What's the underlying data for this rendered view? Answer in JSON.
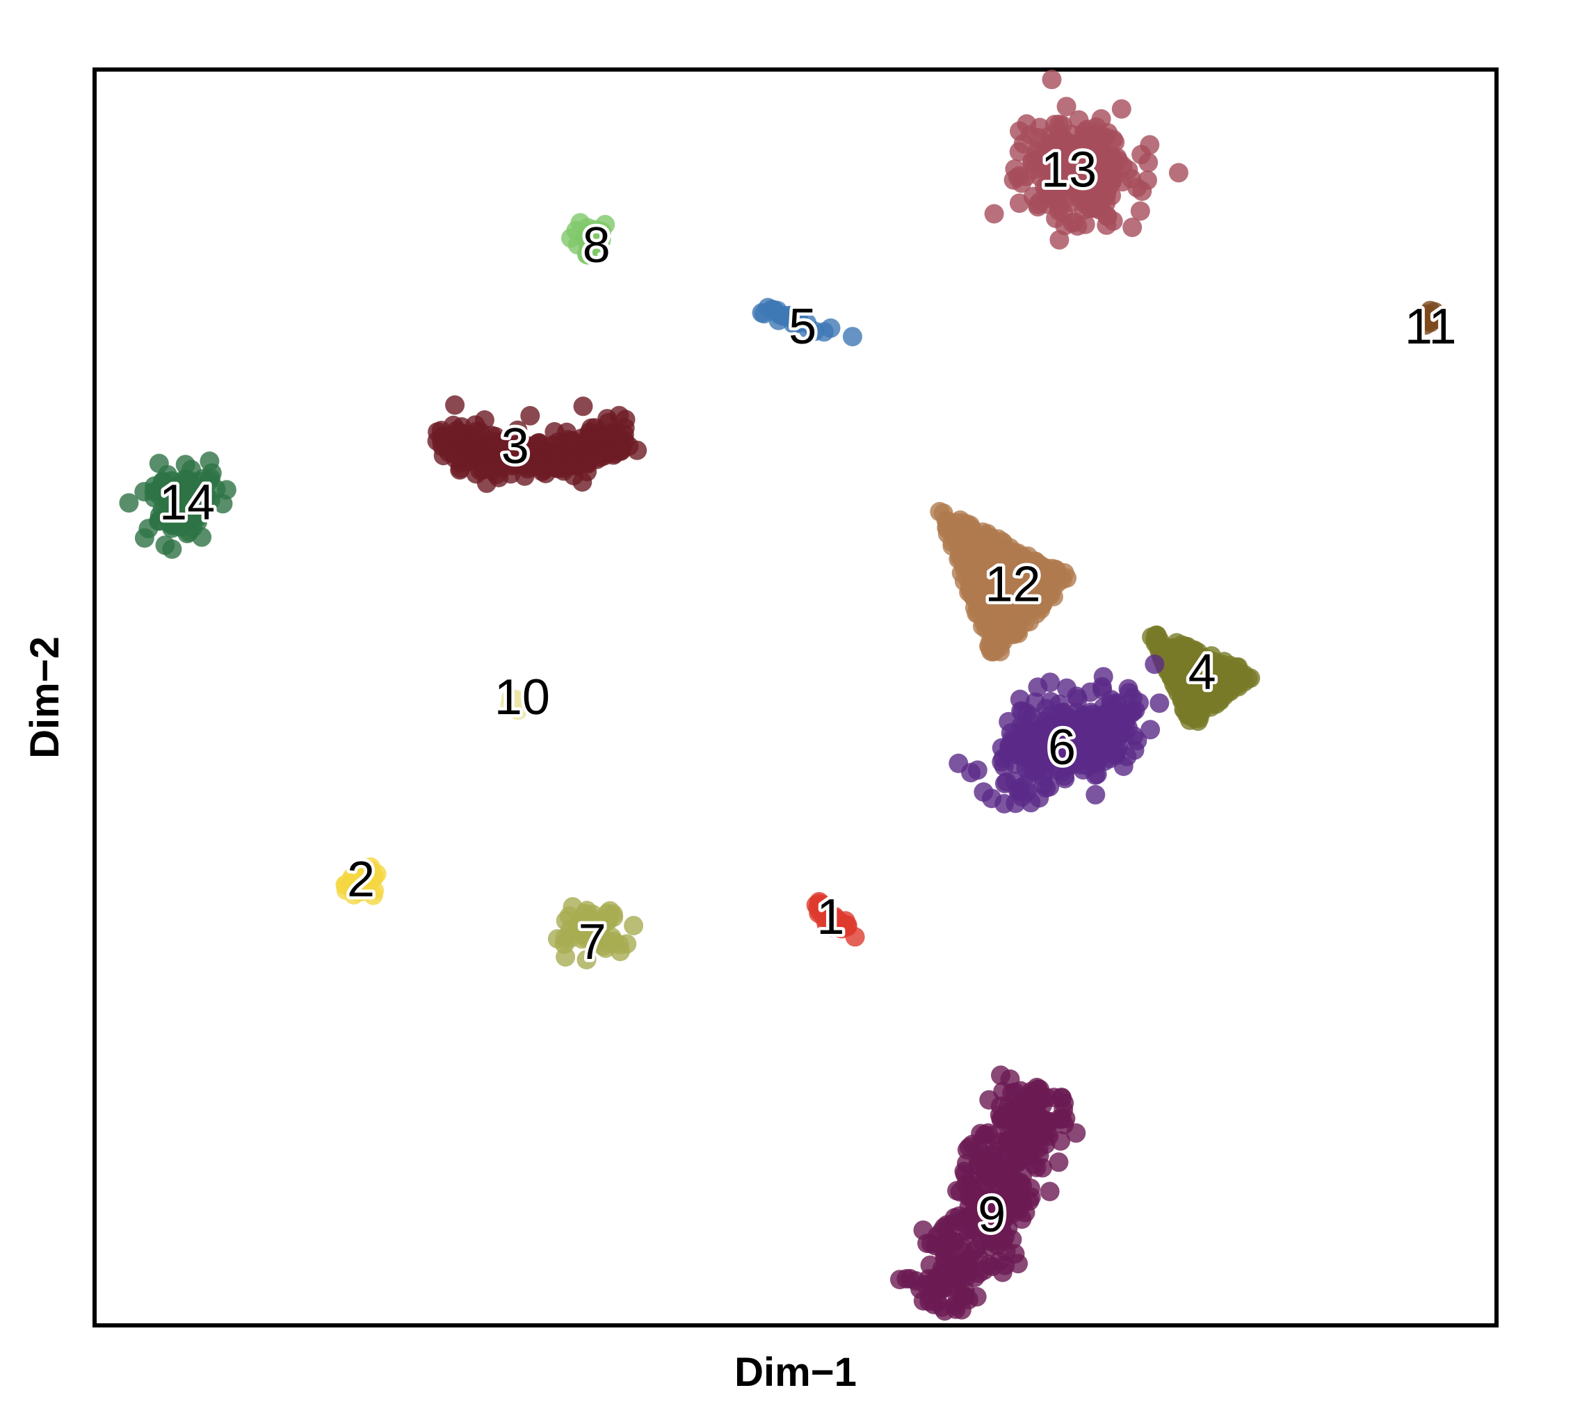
{
  "chart_data": {
    "type": "scatter",
    "title": "",
    "xlabel": "Dim−1",
    "ylabel": "Dim−2",
    "xlim": [
      0,
      100
    ],
    "ylim": [
      0,
      100
    ],
    "axis_ticks_shown": false,
    "grid": false,
    "legend": "none",
    "clusters": [
      {
        "label": "1",
        "color": "#dd3b2e",
        "cx": 52.3,
        "cy": 32.5,
        "sx": 0.9,
        "sy": 0.6,
        "n": 30,
        "shape": "line",
        "angle": -40
      },
      {
        "label": "2",
        "color": "#f5d744",
        "cx": 19.0,
        "cy": 35.5,
        "sx": 1.1,
        "sy": 1.1,
        "n": 40,
        "shape": "blob",
        "angle": 0
      },
      {
        "label": "3",
        "color": "#6d1b24",
        "cx": 31.0,
        "cy": 70.0,
        "sx": 4.0,
        "sy": 2.2,
        "n": 300,
        "shape": "crescent",
        "angle": 0
      },
      {
        "label": "4",
        "color": "#787a28",
        "cx": 79.0,
        "cy": 51.5,
        "sx": 3.2,
        "sy": 3.5,
        "n": 260,
        "shape": "triangle",
        "angle": 0
      },
      {
        "label": "5",
        "color": "#3f78b5",
        "cx": 50.0,
        "cy": 80.0,
        "sx": 1.5,
        "sy": 0.4,
        "n": 25,
        "shape": "line",
        "angle": -20
      },
      {
        "label": "6",
        "color": "#5b2a88",
        "cx": 69.5,
        "cy": 46.5,
        "sx": 4.5,
        "sy": 2.6,
        "n": 300,
        "shape": "blob",
        "angle": 25
      },
      {
        "label": "7",
        "color": "#a8ac52",
        "cx": 35.5,
        "cy": 31.5,
        "sx": 2.0,
        "sy": 2.0,
        "n": 60,
        "shape": "blob",
        "angle": 0
      },
      {
        "label": "8",
        "color": "#7fc86a",
        "cx": 35.5,
        "cy": 86.5,
        "sx": 1.0,
        "sy": 1.0,
        "n": 25,
        "shape": "blob",
        "angle": 0
      },
      {
        "label": "9",
        "color": "#6b1a52",
        "cx": 64.0,
        "cy": 10.0,
        "sx": 1.6,
        "sy": 9.5,
        "n": 320,
        "shape": "line",
        "angle": -25
      },
      {
        "label": "10",
        "color": "#ebe6a8",
        "cx": 30.0,
        "cy": 49.5,
        "sx": 0.4,
        "sy": 0.5,
        "n": 10,
        "shape": "blob",
        "angle": 0
      },
      {
        "label": "11",
        "color": "#7d4a1e",
        "cx": 95.3,
        "cy": 80.0,
        "sx": 0.4,
        "sy": 0.8,
        "n": 10,
        "shape": "blob",
        "angle": 0
      },
      {
        "label": "12",
        "color": "#b07b4f",
        "cx": 65.0,
        "cy": 59.0,
        "sx": 4.0,
        "sy": 5.5,
        "n": 400,
        "shape": "triangle",
        "angle": 0
      },
      {
        "label": "13",
        "color": "#a64d5b",
        "cx": 70.0,
        "cy": 92.0,
        "sx": 3.2,
        "sy": 3.2,
        "n": 300,
        "shape": "blob",
        "angle": 0
      },
      {
        "label": "14",
        "color": "#2e7345",
        "cx": 6.0,
        "cy": 65.5,
        "sx": 2.0,
        "sy": 2.2,
        "n": 120,
        "shape": "blob",
        "angle": 0
      }
    ],
    "label_positions": [
      {
        "label": "1",
        "x": 52.5,
        "y": 32.5
      },
      {
        "label": "2",
        "x": 19.0,
        "y": 35.5
      },
      {
        "label": "3",
        "x": 30.0,
        "y": 70.0
      },
      {
        "label": "4",
        "x": 79.0,
        "y": 52.0
      },
      {
        "label": "5",
        "x": 50.5,
        "y": 79.5
      },
      {
        "label": "6",
        "x": 69.0,
        "y": 46.0
      },
      {
        "label": "7",
        "x": 35.5,
        "y": 30.5
      },
      {
        "label": "8",
        "x": 35.8,
        "y": 86.0
      },
      {
        "label": "9",
        "x": 64.0,
        "y": 8.8
      },
      {
        "label": "10",
        "x": 30.5,
        "y": 50.0
      },
      {
        "label": "11",
        "x": 95.3,
        "y": 79.5
      },
      {
        "label": "12",
        "x": 65.5,
        "y": 59.0
      },
      {
        "label": "13",
        "x": 69.5,
        "y": 92.0
      },
      {
        "label": "14",
        "x": 6.6,
        "y": 65.5
      }
    ]
  }
}
